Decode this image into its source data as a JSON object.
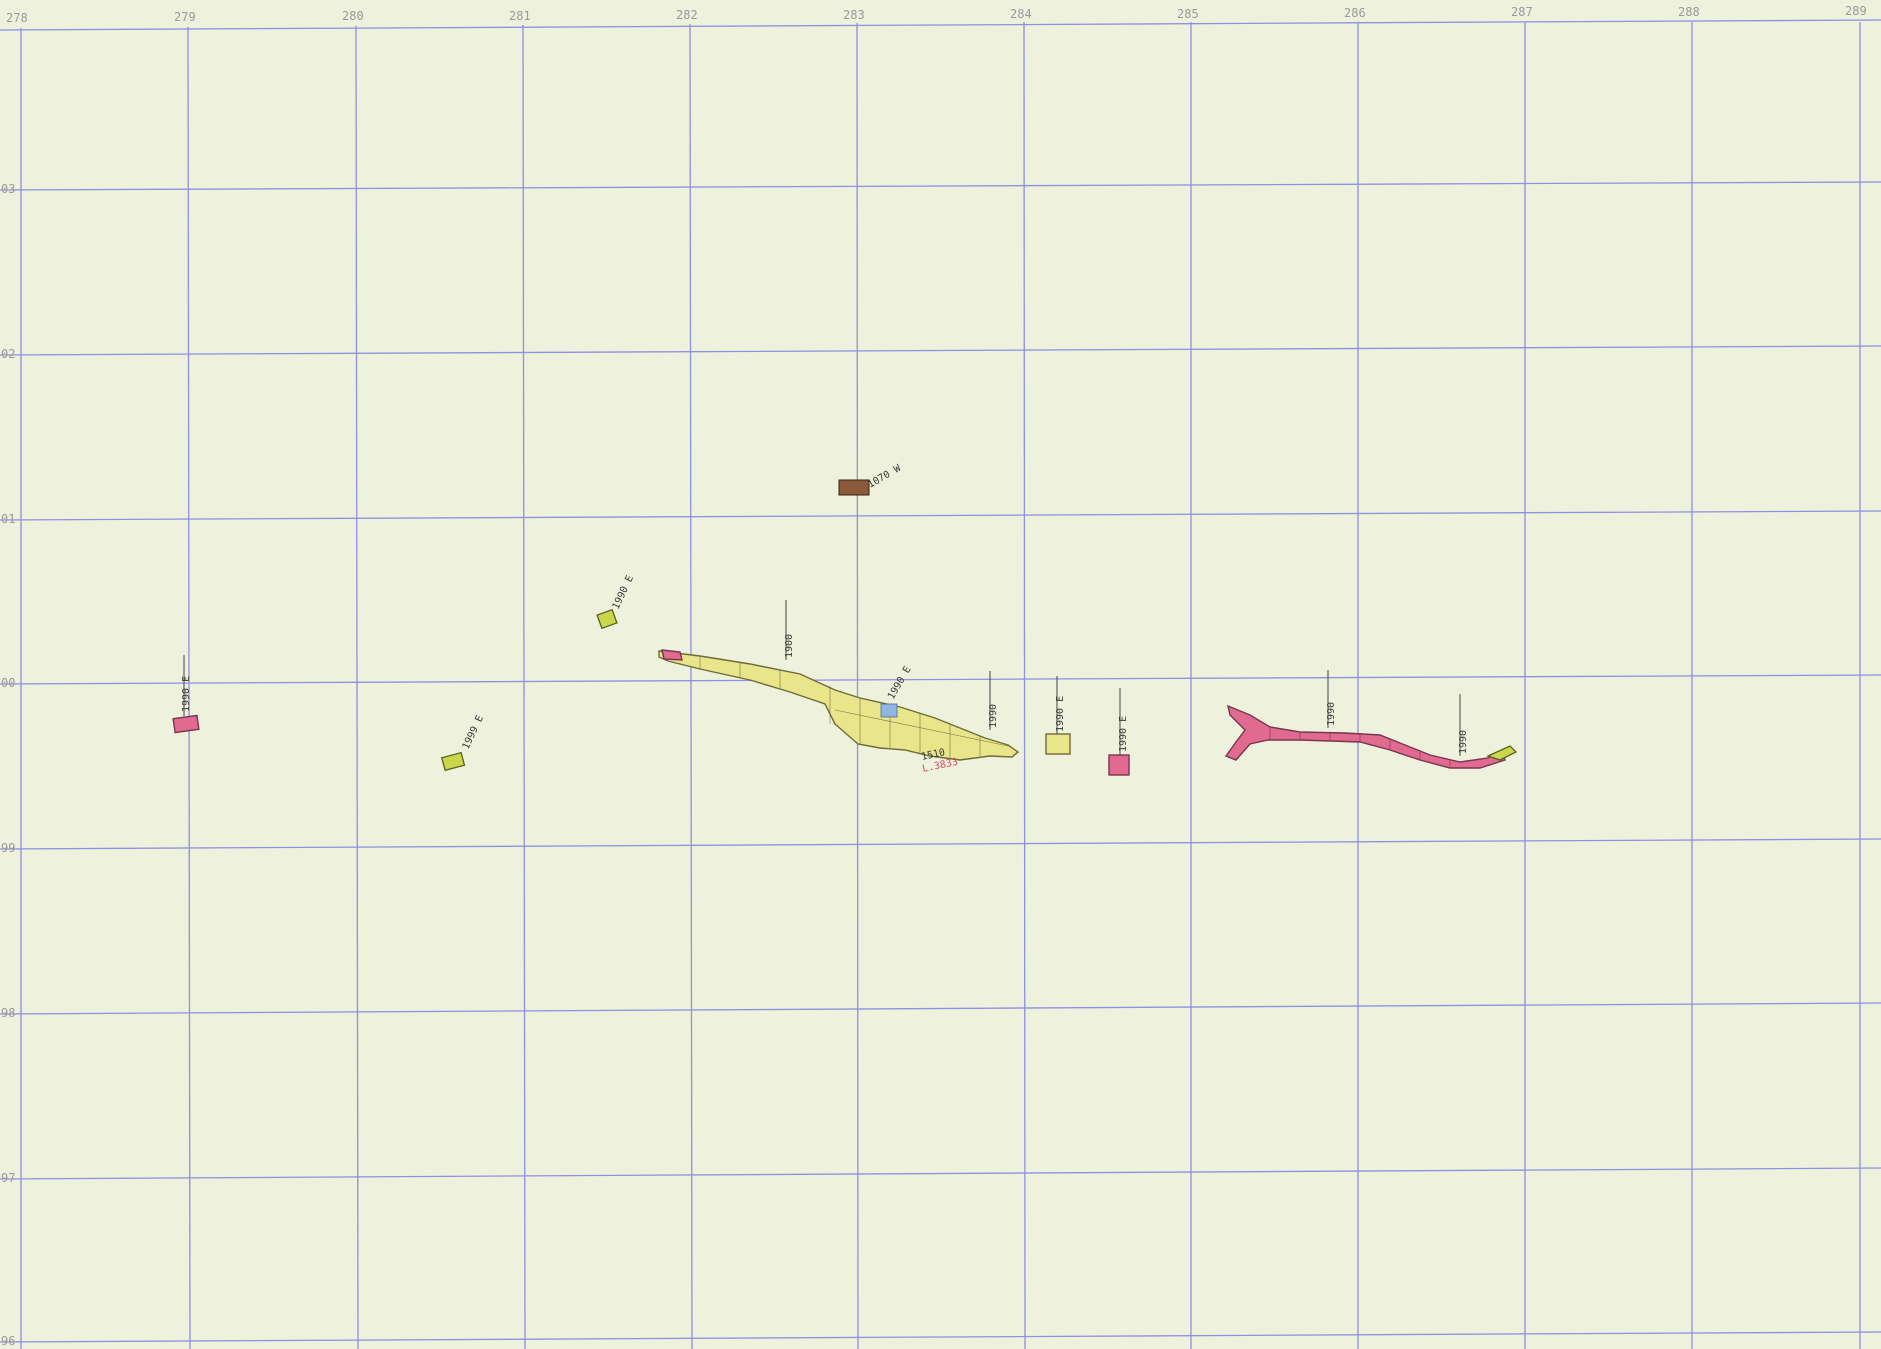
{
  "map": {
    "axis": {
      "easting": [
        "278",
        "279",
        "280",
        "281",
        "282",
        "283",
        "284",
        "285",
        "286",
        "287",
        "288",
        "289"
      ],
      "northing": [
        "03",
        "02",
        "01",
        "00",
        "99",
        "98",
        "97",
        "96"
      ]
    },
    "features": [
      {
        "id": "strip-yellow",
        "label": "1510",
        "sub_label": "L.3833",
        "color": "#e9e58a"
      },
      {
        "id": "strip-magenta",
        "color": "#e06a90"
      },
      {
        "id": "brown-block",
        "label": "1070 W",
        "color": "#8b5a3c"
      }
    ],
    "annotations": [
      "1990 E",
      "1999 E",
      "1990 E",
      "1900",
      "1990 E",
      "1990",
      "1990 E",
      "1990 E",
      "1990",
      "1990"
    ],
    "colors": {
      "paper": "#eef1dc",
      "grid": "#8f8fe3",
      "yellow": "#e9e58a",
      "magenta": "#e06a90",
      "green": "#c8d84a",
      "blue": "#8fb6e0",
      "brown": "#8b5a3c",
      "red_note": "#d84a6a"
    }
  }
}
